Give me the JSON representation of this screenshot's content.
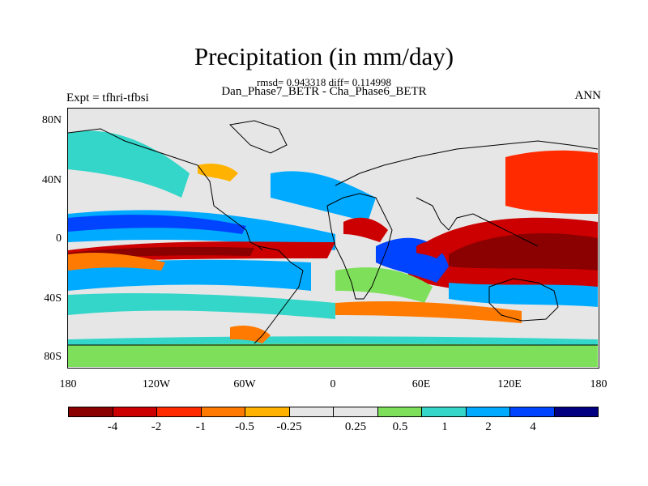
{
  "title": "Precipitation (in mm/day)",
  "stats_line": "rmsd= 0.943318 diff= 0.114998",
  "subtitle": "Dan_Phase7_BETR - Cha_Phase6_BETR",
  "left_label": "Expt = tfhri-tfbsi",
  "right_label": "ANN",
  "y_ticks": [
    "80N",
    "40N",
    "0",
    "40S",
    "80S"
  ],
  "x_ticks": [
    "180",
    "120W",
    "60W",
    "0",
    "60E",
    "120E",
    "180"
  ],
  "colorbar": {
    "colors": [
      "#8b0000",
      "#cc0000",
      "#ff2a00",
      "#ff7a00",
      "#ffb300",
      "#e6e6e6",
      "#e6e6e6",
      "#7ee05a",
      "#33d6c8",
      "#00aaff",
      "#0044ff",
      "#000080"
    ],
    "labels": [
      "-4",
      "-2",
      "-1",
      "-0.5",
      "-0.25",
      "0.25",
      "0.5",
      "1",
      "2",
      "4"
    ]
  },
  "map_colors": {
    "background": "#e6e6e6",
    "strong_neg": "#cc0000",
    "neg": "#ff2a00",
    "mod_neg": "#ff7a00",
    "weak_neg": "#ffb300",
    "weak_pos": "#7ee05a",
    "mod_pos": "#33d6c8",
    "pos": "#00aaff",
    "strong_pos": "#0044ff"
  }
}
